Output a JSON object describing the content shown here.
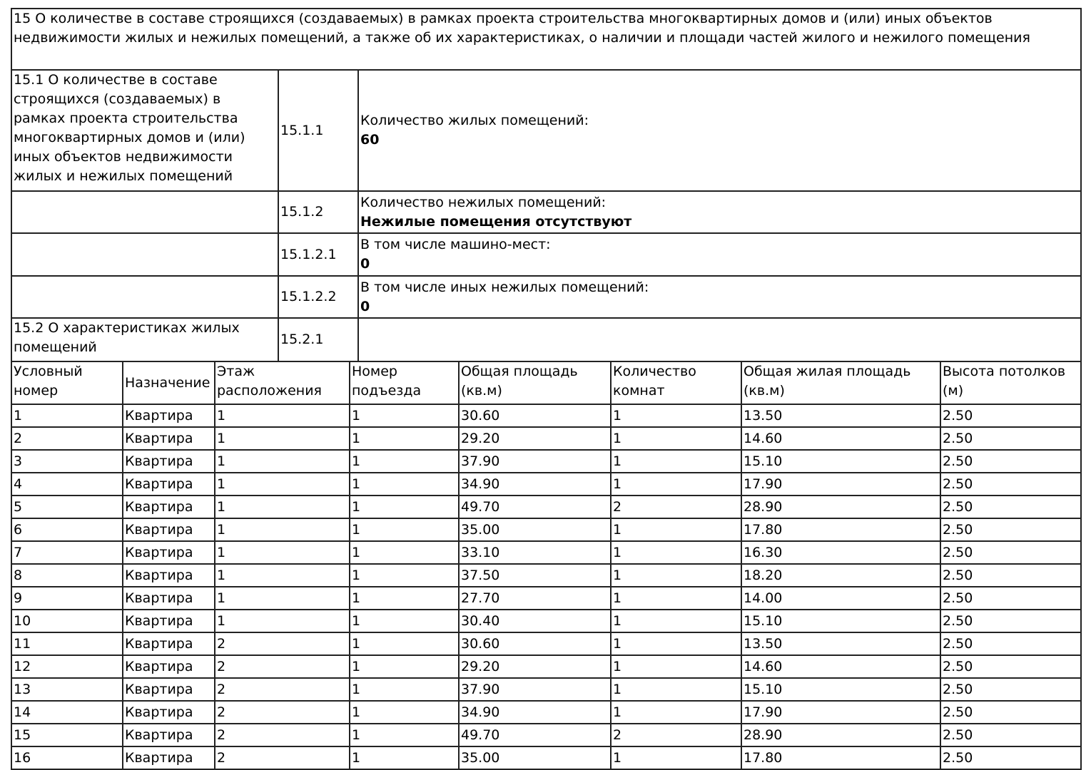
{
  "section": {
    "title": "15 О количестве в составе строящихся (создаваемых) в рамках проекта строительства многоквартирных домов и (или) иных объектов недвижимости жилых и нежилых помещений, а также об их характеристиках, о наличии и площади частей жилого и нежилого помещения"
  },
  "subsections": [
    {
      "label": "15.1 О количестве в составе строящихся (создаваемых) в рамках проекта строительства многоквартирных домов и (или) иных объектов недвижимости жилых и нежилых помещений",
      "code": "15.1.1",
      "field": "Количество жилых помещений:",
      "value": "60"
    },
    {
      "label": "",
      "code": "15.1.2",
      "field": "Количество нежилых помещений:",
      "value": "Нежилые помещения отсутствуют"
    },
    {
      "label": "",
      "code": "15.1.2.1",
      "field": "В том числе машино-мест:",
      "value": "0"
    },
    {
      "label": "",
      "code": "15.1.2.2",
      "field": "В том числе иных нежилых помещений:",
      "value": "0"
    },
    {
      "label": "15.2 О характеристиках жилых помещений",
      "code": "15.2.1",
      "field": "",
      "value": ""
    }
  ],
  "units_table": {
    "columns": [
      "Условный номер",
      "Назначение",
      "Этаж расположения",
      "Номер подъезда",
      "Общая площадь (кв.м)",
      "Количество комнат",
      "Общая жилая площадь (кв.м)",
      "Высота потолков (м)"
    ],
    "rows": [
      [
        "1",
        "Квартира",
        "1",
        "1",
        "30.60",
        "1",
        "13.50",
        "2.50"
      ],
      [
        "2",
        "Квартира",
        "1",
        "1",
        "29.20",
        "1",
        "14.60",
        "2.50"
      ],
      [
        "3",
        "Квартира",
        "1",
        "1",
        "37.90",
        "1",
        "15.10",
        "2.50"
      ],
      [
        "4",
        "Квартира",
        "1",
        "1",
        "34.90",
        "1",
        "17.90",
        "2.50"
      ],
      [
        "5",
        "Квартира",
        "1",
        "1",
        "49.70",
        "2",
        "28.90",
        "2.50"
      ],
      [
        "6",
        "Квартира",
        "1",
        "1",
        "35.00",
        "1",
        "17.80",
        "2.50"
      ],
      [
        "7",
        "Квартира",
        "1",
        "1",
        "33.10",
        "1",
        "16.30",
        "2.50"
      ],
      [
        "8",
        "Квартира",
        "1",
        "1",
        "37.50",
        "1",
        "18.20",
        "2.50"
      ],
      [
        "9",
        "Квартира",
        "1",
        "1",
        "27.70",
        "1",
        "14.00",
        "2.50"
      ],
      [
        "10",
        "Квартира",
        "1",
        "1",
        "30.40",
        "1",
        "15.10",
        "2.50"
      ],
      [
        "11",
        "Квартира",
        "2",
        "1",
        "30.60",
        "1",
        "13.50",
        "2.50"
      ],
      [
        "12",
        "Квартира",
        "2",
        "1",
        "29.20",
        "1",
        "14.60",
        "2.50"
      ],
      [
        "13",
        "Квартира",
        "2",
        "1",
        "37.90",
        "1",
        "15.10",
        "2.50"
      ],
      [
        "14",
        "Квартира",
        "2",
        "1",
        "34.90",
        "1",
        "17.90",
        "2.50"
      ],
      [
        "15",
        "Квартира",
        "2",
        "1",
        "49.70",
        "2",
        "28.90",
        "2.50"
      ],
      [
        "16",
        "Квартира",
        "2",
        "1",
        "35.00",
        "1",
        "17.80",
        "2.50"
      ]
    ]
  }
}
